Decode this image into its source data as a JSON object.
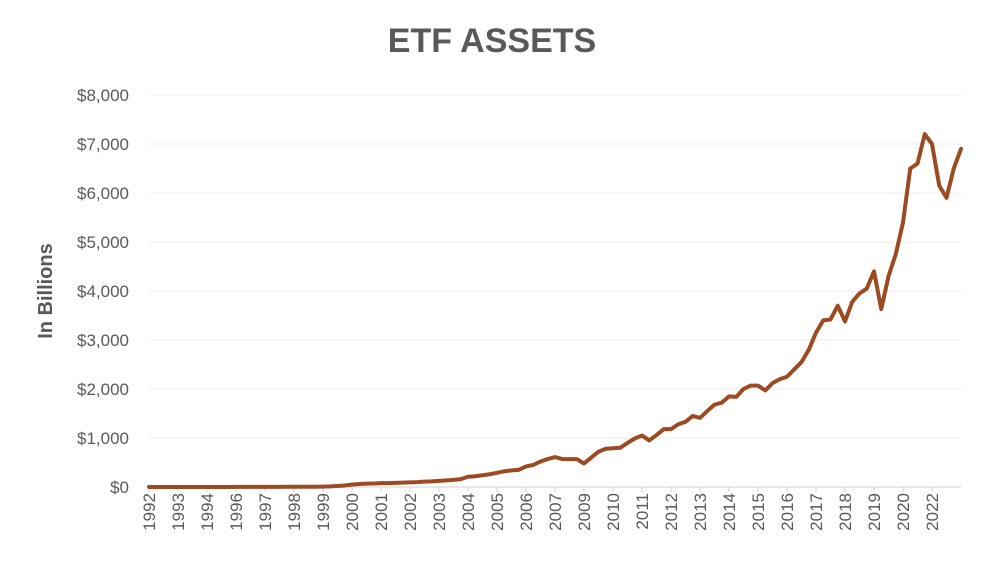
{
  "chart_data": {
    "type": "line",
    "title": "ETF ASSETS",
    "y_label": "In Billions",
    "categories": [
      "1992",
      null,
      null,
      null,
      "1993",
      null,
      null,
      null,
      "1994",
      null,
      null,
      null,
      "1996",
      null,
      null,
      null,
      "1997",
      null,
      null,
      null,
      "1998",
      null,
      null,
      null,
      "1999",
      null,
      null,
      null,
      "2000",
      null,
      null,
      null,
      "2001",
      null,
      null,
      null,
      "2002",
      null,
      null,
      null,
      "2003",
      null,
      null,
      null,
      "2004",
      null,
      null,
      null,
      "2005",
      null,
      null,
      null,
      "2006",
      null,
      null,
      null,
      "2007",
      null,
      null,
      null,
      "2009",
      null,
      null,
      null,
      "2010",
      null,
      null,
      null,
      "2011",
      null,
      null,
      null,
      "2012",
      null,
      null,
      null,
      "2013",
      null,
      null,
      null,
      "2014",
      null,
      null,
      null,
      "2015",
      null,
      null,
      null,
      "2016",
      null,
      null,
      null,
      "2017",
      null,
      null,
      null,
      "2018",
      null,
      null,
      null,
      "2019",
      null,
      null,
      null,
      "2020",
      null,
      null,
      null,
      "2022",
      null,
      null,
      null,
      null
    ],
    "values": [
      0,
      0,
      0,
      0,
      0,
      0,
      0,
      0,
      1,
      1,
      1,
      1,
      2,
      2,
      2,
      2,
      3,
      3,
      3,
      4,
      4,
      5,
      5,
      6,
      8,
      12,
      20,
      30,
      50,
      60,
      70,
      72,
      78,
      80,
      85,
      90,
      95,
      100,
      110,
      115,
      125,
      135,
      145,
      160,
      210,
      220,
      240,
      260,
      290,
      320,
      340,
      350,
      420,
      450,
      520,
      570,
      610,
      570,
      570,
      570,
      480,
      600,
      720,
      780,
      790,
      800,
      900,
      990,
      1050,
      950,
      1060,
      1180,
      1180,
      1280,
      1330,
      1450,
      1410,
      1550,
      1680,
      1720,
      1850,
      1840,
      2000,
      2070,
      2070,
      1970,
      2120,
      2200,
      2250,
      2400,
      2550,
      2800,
      3150,
      3400,
      3420,
      3700,
      3380,
      3780,
      3950,
      4050,
      4400,
      3630,
      4300,
      4750,
      5400,
      6500,
      6600,
      7200,
      7000,
      6150,
      5900,
      6500,
      6900
    ],
    "color": "#9c4a22",
    "ylim": [
      0,
      8000
    ],
    "yticks": [
      {
        "value": 0,
        "label": "$0"
      },
      {
        "value": 1000,
        "label": "$1,000"
      },
      {
        "value": 2000,
        "label": "$2,000"
      },
      {
        "value": 3000,
        "label": "$3,000"
      },
      {
        "value": 4000,
        "label": "$4,000"
      },
      {
        "value": 5000,
        "label": "$5,000"
      },
      {
        "value": 6000,
        "label": "$6,000"
      },
      {
        "value": 7000,
        "label": "$7,000"
      },
      {
        "value": 8000,
        "label": "$8,000"
      }
    ],
    "grid": true
  }
}
